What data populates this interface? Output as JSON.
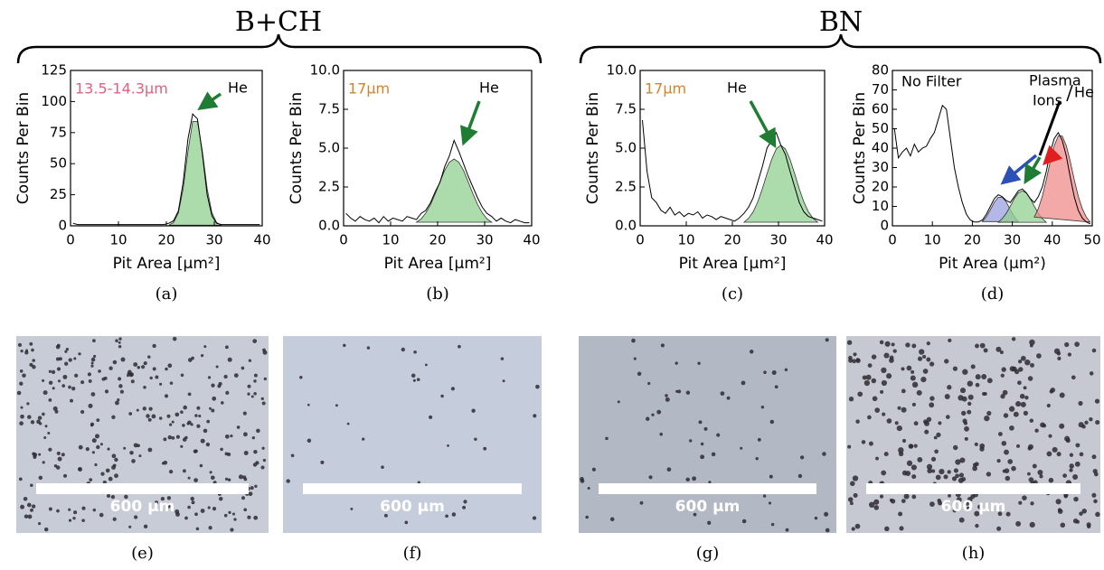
{
  "figure": {
    "groups": [
      {
        "label": "B+CH"
      },
      {
        "label": "BN"
      }
    ],
    "images": [
      {
        "caption": "(e)",
        "scale_label": "600 µm"
      },
      {
        "caption": "(f)",
        "scale_label": "600 µm"
      },
      {
        "caption": "(g)",
        "scale_label": "600 µm"
      },
      {
        "caption": "(h)",
        "scale_label": "600 µm"
      }
    ]
  },
  "chart_data": [
    {
      "type": "histogram",
      "caption": "(a)",
      "x_label": "Pit Area [μm²]",
      "y_label": "Counts Per Bin",
      "xlim": [
        0,
        40
      ],
      "ylim": [
        0,
        125
      ],
      "xticks": [
        0,
        10,
        20,
        30,
        40
      ],
      "yticks": [
        0,
        25,
        50,
        75,
        100,
        125
      ],
      "annotations": [
        {
          "text": "13.5-14.3μm",
          "color": "#e0607e"
        },
        {
          "text": "He",
          "color": "#000000"
        }
      ],
      "x": [
        0.5,
        1.5,
        2.5,
        3.5,
        4.5,
        5.5,
        6.5,
        7.5,
        8.5,
        9.5,
        10.5,
        11.5,
        12.5,
        13.5,
        14.5,
        15.5,
        16.5,
        17.5,
        18.5,
        19.5,
        20.5,
        21.5,
        22.5,
        23.5,
        24.5,
        25.5,
        26.5,
        27.5,
        28.5,
        29.5,
        30.5,
        31.5,
        32.5,
        33.5,
        34.5,
        35.5,
        36.5,
        37.5,
        38.5,
        39.5
      ],
      "series": [
        {
          "color": "#90d090",
          "fill": true,
          "values": [
            null,
            null,
            null,
            null,
            null,
            null,
            null,
            null,
            null,
            null,
            null,
            null,
            null,
            null,
            null,
            null,
            null,
            null,
            null,
            null,
            0.5,
            2.6,
            10.5,
            30,
            60,
            84,
            84,
            60,
            30,
            10.5,
            2.6,
            0.5,
            null,
            null,
            null,
            null,
            null,
            null,
            null,
            null
          ]
        },
        {
          "color": "#000000",
          "fill": false,
          "values": [
            2,
            1,
            1,
            1,
            1,
            1,
            1,
            1,
            1,
            1,
            1,
            1,
            1,
            1,
            1,
            1,
            1,
            1,
            1,
            1,
            2,
            4,
            12,
            35,
            70,
            90,
            86,
            58,
            25,
            8,
            2,
            1,
            1,
            1,
            1,
            1,
            1,
            1,
            1,
            1
          ]
        }
      ]
    },
    {
      "type": "histogram",
      "caption": "(b)",
      "x_label": "Pit Area [μm²]",
      "y_label": "Counts Per Bin",
      "xlim": [
        0,
        40
      ],
      "ylim": [
        0,
        10
      ],
      "xticks": [
        0,
        10,
        20,
        30,
        40
      ],
      "yticks": [
        {
          "value": 0,
          "label": "0.0"
        },
        2.5,
        {
          "value": 5,
          "label": "5.0"
        },
        7.5,
        {
          "value": 10,
          "label": "10.0"
        }
      ],
      "annotations": [
        {
          "text": "17μm",
          "color": "#d4822a"
        },
        {
          "text": "He",
          "color": "#000000"
        }
      ],
      "x": [
        0.5,
        1.5,
        2.5,
        3.5,
        4.5,
        5.5,
        6.5,
        7.5,
        8.5,
        9.5,
        10.5,
        11.5,
        12.5,
        13.5,
        14.5,
        15.5,
        16.5,
        17.5,
        18.5,
        19.5,
        20.5,
        21.5,
        22.5,
        23.5,
        24.5,
        25.5,
        26.5,
        27.5,
        28.5,
        29.5,
        30.5,
        31.5,
        32.5,
        33.5,
        34.5,
        35.5,
        36.5,
        37.5,
        38.5,
        39.5
      ],
      "series": [
        {
          "color": "#90d090",
          "fill": true,
          "values": [
            null,
            null,
            null,
            null,
            null,
            null,
            null,
            null,
            null,
            null,
            null,
            null,
            null,
            null,
            null,
            0.23,
            0.45,
            0.83,
            1.37,
            2.07,
            2.83,
            3.57,
            4.1,
            4.3,
            4.1,
            3.57,
            2.83,
            2.07,
            1.37,
            0.83,
            0.45,
            0.23,
            null,
            null,
            null,
            null,
            null,
            null,
            null,
            null
          ]
        },
        {
          "color": "#000000",
          "fill": false,
          "values": [
            0.8,
            0.5,
            0.3,
            0.6,
            0.4,
            0.3,
            0.5,
            0.2,
            0.6,
            0.3,
            0.5,
            0.4,
            0.3,
            0.6,
            0.5,
            0.4,
            0.8,
            1.0,
            1.5,
            2.2,
            2.8,
            3.8,
            4.5,
            5.5,
            4.8,
            4.0,
            3.2,
            2.5,
            1.8,
            1.2,
            0.8,
            0.6,
            0.3,
            0.5,
            0.3,
            0.2,
            0.4,
            0.3,
            0.2,
            0.2
          ]
        }
      ]
    },
    {
      "type": "histogram",
      "caption": "(c)",
      "x_label": "Pit Area [μm²]",
      "y_label": "Counts Per Bin",
      "xlim": [
        0,
        40
      ],
      "ylim": [
        0,
        10
      ],
      "xticks": [
        0,
        10,
        20,
        30,
        40
      ],
      "yticks": [
        {
          "value": 0,
          "label": "0.0"
        },
        2.5,
        {
          "value": 5,
          "label": "5.0"
        },
        7.5,
        {
          "value": 10,
          "label": "10.0"
        }
      ],
      "annotations": [
        {
          "text": "17μm",
          "color": "#d4822a"
        },
        {
          "text": "He",
          "color": "#000000"
        }
      ],
      "x": [
        0.5,
        1.5,
        2.5,
        3.5,
        4.5,
        5.5,
        6.5,
        7.5,
        8.5,
        9.5,
        10.5,
        11.5,
        12.5,
        13.5,
        14.5,
        15.5,
        16.5,
        17.5,
        18.5,
        19.5,
        20.5,
        21.5,
        22.5,
        23.5,
        24.5,
        25.5,
        26.5,
        27.5,
        28.5,
        29.5,
        30.5,
        31.5,
        32.5,
        33.5,
        34.5,
        35.5,
        36.5,
        37.5,
        38.5,
        39.5
      ],
      "series": [
        {
          "color": "#90d090",
          "fill": true,
          "values": [
            null,
            null,
            null,
            null,
            null,
            null,
            null,
            null,
            null,
            null,
            null,
            null,
            null,
            null,
            null,
            null,
            null,
            null,
            null,
            null,
            null,
            null,
            0.23,
            0.48,
            0.9,
            1.54,
            2.38,
            3.35,
            4.27,
            4.95,
            5.2,
            4.95,
            4.27,
            3.35,
            2.38,
            1.54,
            0.9,
            0.48,
            0.23,
            null
          ]
        },
        {
          "color": "#000000",
          "fill": false,
          "values": [
            6.8,
            3.5,
            1.8,
            1.5,
            1.0,
            0.8,
            1.2,
            0.7,
            0.9,
            0.6,
            0.8,
            0.7,
            0.9,
            0.5,
            0.7,
            0.6,
            0.4,
            0.6,
            0.5,
            0.4,
            0.3,
            0.5,
            0.8,
            1.2,
            1.8,
            2.8,
            3.8,
            5.0,
            5.5,
            6.0,
            5.2,
            4.6,
            3.5,
            2.5,
            1.5,
            0.9,
            0.6,
            0.5,
            0.4,
            0.3
          ]
        }
      ]
    },
    {
      "type": "histogram",
      "caption": "(d)",
      "x_label": "Pit Area (μm²)",
      "y_label": "Counts Per Bin",
      "xlim": [
        0,
        50
      ],
      "ylim": [
        0,
        80
      ],
      "xticks": [
        0,
        10,
        20,
        30,
        40,
        50
      ],
      "yticks": [
        0,
        10,
        20,
        30,
        40,
        50,
        60,
        70,
        80
      ],
      "annotations": [
        {
          "text": "No Filter",
          "color": "#000000"
        },
        {
          "text": "Plasma",
          "color": "#000000"
        },
        {
          "text": "Ions",
          "color": "#000000"
        },
        {
          "text": "He",
          "color": "#000000"
        }
      ],
      "x": [
        0.5,
        1.5,
        2.5,
        3.5,
        4.5,
        5.5,
        6.5,
        7.5,
        8.5,
        9.5,
        10.5,
        11.5,
        12.5,
        13.5,
        14.5,
        15.5,
        16.5,
        17.5,
        18.5,
        19.5,
        20.5,
        21.5,
        22.5,
        23.5,
        24.5,
        25.5,
        26.5,
        27.5,
        28.5,
        29.5,
        30.5,
        31.5,
        32.5,
        33.5,
        34.5,
        35.5,
        36.5,
        37.5,
        38.5,
        39.5,
        40.5,
        41.5,
        42.5,
        43.5,
        44.5,
        45.5,
        46.5,
        47.5,
        48.5,
        49.5
      ],
      "series": [
        {
          "color": "#9aa0e0",
          "fill": true,
          "values": [
            null,
            null,
            null,
            null,
            null,
            null,
            null,
            null,
            null,
            null,
            null,
            null,
            null,
            null,
            null,
            null,
            null,
            null,
            null,
            null,
            null,
            null,
            2.2,
            4.7,
            8.3,
            12.2,
            14.7,
            14.7,
            12.2,
            8.3,
            4.7,
            2.2,
            null,
            null,
            null,
            null,
            null,
            null,
            null,
            null,
            null,
            null,
            null,
            null,
            null,
            null,
            null,
            null,
            null,
            null
          ]
        },
        {
          "color": "#90d090",
          "fill": true,
          "values": [
            null,
            null,
            null,
            null,
            null,
            null,
            null,
            null,
            null,
            null,
            null,
            null,
            null,
            null,
            null,
            null,
            null,
            null,
            null,
            null,
            null,
            null,
            null,
            null,
            null,
            null,
            1.8,
            3.7,
            6.5,
            10.1,
            14,
            16.9,
            18,
            16.9,
            14,
            10.1,
            6.5,
            3.7,
            1.8,
            null,
            null,
            null,
            null,
            null,
            null,
            null,
            null,
            null,
            null,
            null
          ]
        },
        {
          "color": "#f08c8c",
          "fill": true,
          "values": [
            null,
            null,
            null,
            null,
            null,
            null,
            null,
            null,
            null,
            null,
            null,
            null,
            null,
            null,
            null,
            null,
            null,
            null,
            null,
            null,
            null,
            null,
            null,
            null,
            null,
            null,
            null,
            null,
            null,
            null,
            null,
            null,
            null,
            null,
            null,
            4.5,
            8.8,
            15.3,
            23.8,
            33.2,
            41.3,
            46.3,
            46.3,
            41.3,
            33.2,
            23.8,
            15.3,
            8.8,
            4.5,
            1.9
          ]
        },
        {
          "color": "#000000",
          "fill": false,
          "values": [
            50,
            35,
            38,
            40,
            36,
            42,
            38,
            40,
            41,
            45,
            48,
            55,
            62,
            60,
            45,
            30,
            20,
            12,
            6,
            3,
            2,
            2,
            3,
            6,
            10,
            14,
            16,
            15,
            13,
            12,
            15,
            18,
            19,
            17,
            14,
            12,
            15,
            20,
            28,
            38,
            45,
            48,
            44,
            36,
            25,
            15,
            8,
            4,
            2,
            1
          ]
        }
      ]
    }
  ]
}
